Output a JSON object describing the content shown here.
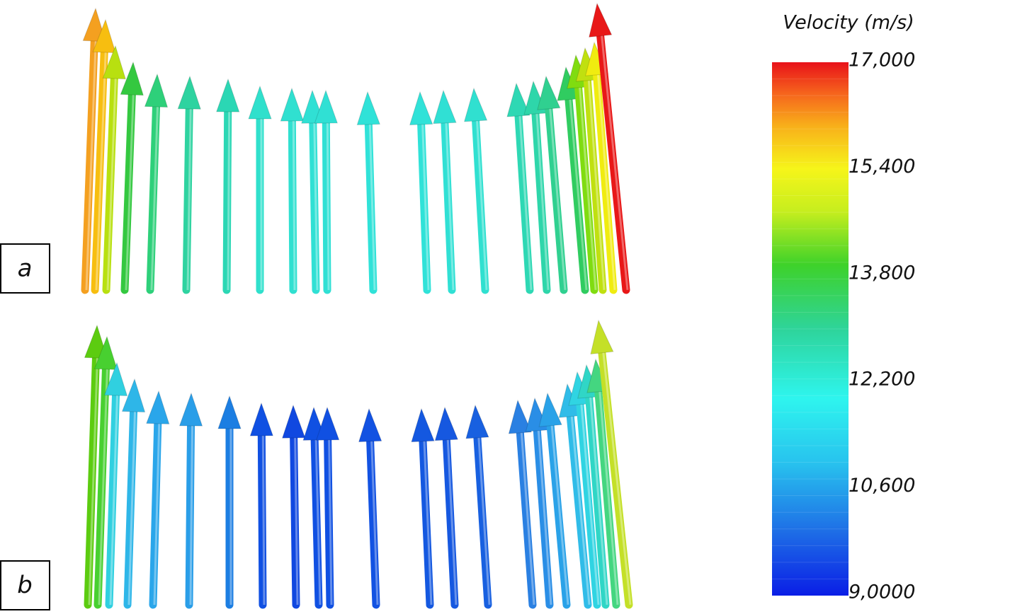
{
  "panels": [
    {
      "label": "a"
    },
    {
      "label": "b"
    }
  ],
  "legend": {
    "title": "Velocity (m/s)",
    "ticks": [
      "17,000",
      "15,400",
      "13,800",
      "12,200",
      "10,600",
      "9,0000"
    ]
  }
}
